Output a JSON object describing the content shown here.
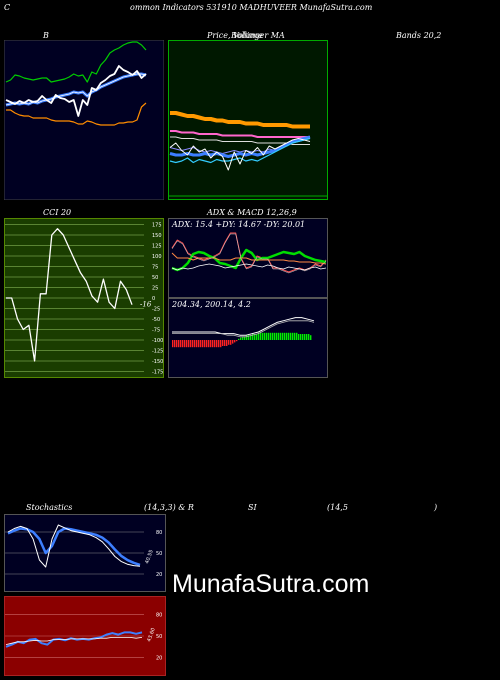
{
  "header": {
    "left": "C",
    "center": "ommon  Indicators 531910  MADHUVEER MunafaSutra.com"
  },
  "titles": {
    "bollinger": "B",
    "price": "Price,",
    "price_overlap": "Volume",
    "price_ma": "Bollinger  MA",
    "bands": "Bands 20,2",
    "cci": "CCI 20",
    "adx": "ADX  & MACD 12,26,9",
    "adx_line": "ADX: 15.4   +DY: 14.67 -DY: 20.01",
    "macd_line": "204.34,  200.14,  4.2",
    "stoch_a": "Stochastics",
    "stoch_b": "(14,3,3) & R",
    "stoch_c": "SI",
    "stoch_d": "(14,5",
    "stoch_e": ")"
  },
  "watermark": "MunafaSutra.com",
  "colors": {
    "navy": "#000022",
    "dark_green": "#001800",
    "cci_green": "#1a3d00",
    "dark_red": "#8b0000",
    "orange": "#ff8c00",
    "blue": "#3d7fff",
    "green": "#00dd00",
    "white": "#ffffff"
  },
  "chart_data": [
    {
      "type": "line",
      "name": "bollinger",
      "series": [
        {
          "values": [
            118,
            120,
            125,
            124,
            122,
            121,
            120,
            121,
            122,
            122,
            118,
            119,
            120,
            121,
            123,
            126,
            124,
            125,
            118,
            128,
            126,
            135,
            140,
            147,
            150,
            152,
            155,
            157,
            158,
            158,
            155,
            150
          ]
        },
        {
          "values": [
            95,
            96,
            97,
            96,
            97,
            96,
            98,
            97,
            99,
            100,
            101,
            103,
            104,
            105,
            106,
            108,
            107,
            108,
            104,
            108,
            110,
            113,
            115,
            117,
            119,
            121,
            123,
            124,
            125,
            126,
            126,
            125
          ]
        },
        {
          "values": [
            72,
            72,
            70,
            68,
            72,
            75,
            76,
            73,
            77,
            78,
            84,
            87,
            88,
            88,
            89,
            90,
            90,
            91,
            90,
            88,
            94,
            91,
            90,
            88,
            88,
            90,
            91,
            91,
            92,
            94,
            97,
            100
          ]
        },
        {
          "values": [
            100,
            98,
            96,
            99,
            97,
            100,
            98,
            99,
            104,
            100,
            97,
            105,
            102,
            101,
            98,
            100,
            84,
            100,
            95,
            112,
            110,
            117,
            120,
            124,
            126,
            134,
            130,
            128,
            125,
            129,
            122,
            126
          ]
        },
        {
          "values": [
            90,
            90,
            87,
            85,
            84,
            84,
            82,
            82,
            82,
            82,
            80,
            79,
            79,
            79,
            79,
            78,
            76,
            76,
            79,
            78,
            76,
            75,
            75,
            75,
            75,
            77,
            77,
            78,
            78,
            80,
            93,
            97
          ]
        }
      ]
    },
    {
      "type": "line",
      "name": "price-volume",
      "series": [
        {
          "values": [
            208,
            208,
            207,
            206,
            206,
            205,
            204,
            204,
            203,
            203,
            202,
            202,
            202,
            201,
            201,
            201,
            200,
            200,
            200,
            200,
            200,
            199,
            199,
            199,
            199
          ]
        },
        {
          "values": [
            196,
            196,
            195,
            195,
            195,
            194,
            194,
            194,
            194,
            193,
            193,
            193,
            193,
            193,
            193,
            192,
            192,
            192,
            192,
            192,
            192,
            192,
            192,
            192,
            192
          ]
        },
        {
          "values": [
            192,
            192,
            191,
            191,
            191,
            190,
            190,
            190,
            190,
            189,
            189,
            189,
            189,
            189,
            189,
            188,
            188,
            188,
            188,
            188,
            188,
            187,
            187,
            187,
            187
          ]
        },
        {
          "values": [
            185,
            184,
            183,
            184,
            185,
            183,
            182,
            183,
            182,
            181,
            182,
            183,
            182,
            183,
            182,
            183,
            182,
            184,
            183,
            185,
            186,
            188,
            189,
            190,
            192
          ]
        },
        {
          "values": [
            181,
            180,
            180,
            181,
            180,
            180,
            181,
            180,
            181,
            180,
            179,
            180,
            181,
            180,
            181,
            180,
            181,
            182,
            183,
            185,
            187,
            189,
            190,
            191,
            192
          ]
        },
        {
          "values": [
            176,
            175,
            176,
            178,
            175,
            177,
            176,
            175,
            177,
            176,
            176,
            177,
            178,
            176,
            177,
            176,
            178,
            180,
            182,
            184,
            186,
            188,
            189,
            190,
            191
          ]
        },
        {
          "values": [
            185,
            188,
            183,
            180,
            186,
            182,
            184,
            178,
            182,
            179,
            170,
            182,
            174,
            183,
            181,
            185,
            180,
            186,
            184,
            186,
            188,
            190,
            191,
            190,
            189
          ]
        }
      ]
    },
    {
      "type": "line",
      "name": "cci",
      "y_ticks": [
        175,
        150,
        125,
        100,
        75,
        50,
        25,
        0,
        -25,
        -50,
        -75,
        -100,
        -125,
        -150,
        -175
      ],
      "last_value_label": "-16",
      "series": [
        {
          "values": [
            0,
            0,
            -50,
            -75,
            -65,
            -150,
            10,
            10,
            150,
            165,
            150,
            120,
            90,
            60,
            40,
            5,
            -10,
            45,
            -10,
            -25,
            40,
            20,
            -16
          ]
        }
      ]
    },
    {
      "type": "line",
      "name": "adx",
      "series": [
        {
          "values": [
            45,
            40,
            40,
            40,
            38,
            40,
            40,
            40,
            40,
            38,
            38,
            38,
            40,
            40,
            40,
            38,
            38,
            38,
            38,
            38,
            38,
            38,
            37,
            37,
            36,
            36,
            36,
            35,
            35,
            34
          ]
        },
        {
          "values": [
            50,
            58,
            55,
            45,
            42,
            40,
            38,
            40,
            42,
            45,
            56,
            65,
            65,
            40,
            30,
            32,
            42,
            40,
            40,
            30,
            30,
            28,
            26,
            28,
            30,
            28,
            30,
            34,
            32,
            38
          ]
        },
        {
          "values": [
            30,
            28,
            30,
            35,
            44,
            46,
            45,
            42,
            40,
            35,
            34,
            32,
            30,
            40,
            48,
            45,
            38,
            40,
            40,
            42,
            44,
            46,
            45,
            44,
            46,
            42,
            40,
            38,
            37,
            36
          ]
        },
        {
          "values": [
            30,
            28,
            30,
            29,
            30,
            32,
            33,
            34,
            33,
            32,
            30,
            31,
            32,
            33,
            34,
            33,
            32,
            31,
            33,
            32,
            30,
            29,
            31,
            30,
            29,
            28,
            30,
            31,
            29,
            30
          ]
        }
      ]
    },
    {
      "type": "bar",
      "name": "macd",
      "histogram": [
        -6,
        -6,
        -6,
        -6,
        -6,
        -6,
        -6,
        -6,
        -6,
        -6,
        -6,
        -6,
        -6,
        -6,
        -6,
        -6,
        -6,
        -6,
        -6,
        -6,
        -6,
        -6,
        -6,
        -6,
        -6,
        -5,
        -5,
        -5,
        -4,
        -4,
        -3,
        -2,
        -1,
        1,
        2,
        3,
        3,
        4,
        4,
        4,
        5,
        5,
        5,
        6,
        6,
        6,
        6,
        6,
        6,
        6,
        6,
        6,
        6,
        6,
        6,
        6,
        6,
        6,
        6,
        6,
        6,
        6,
        6,
        5,
        5,
        5,
        5,
        5,
        5,
        4
      ],
      "series": [
        {
          "values": [
            5,
            5,
            5,
            5,
            5,
            5,
            5,
            5,
            4,
            4,
            4,
            3,
            3,
            4,
            5,
            7,
            9,
            11,
            12,
            13,
            14,
            14,
            13,
            12
          ]
        },
        {
          "values": [
            4,
            4,
            4,
            4,
            4,
            4,
            4,
            4,
            4,
            3,
            3,
            2,
            2,
            3,
            4,
            6,
            8,
            10,
            11,
            12,
            12,
            12,
            12,
            11
          ]
        }
      ]
    },
    {
      "type": "line",
      "name": "stochastics",
      "y_ticks": [
        80,
        50,
        20
      ],
      "side_label": "40.55",
      "series": [
        {
          "values": [
            80,
            85,
            88,
            85,
            70,
            40,
            30,
            70,
            90,
            86,
            82,
            80,
            78,
            76,
            72,
            66,
            56,
            45,
            38,
            34,
            32,
            31
          ]
        },
        {
          "values": [
            78,
            82,
            85,
            84,
            80,
            70,
            50,
            60,
            80,
            85,
            84,
            82,
            80,
            78,
            76,
            72,
            65,
            55,
            46,
            40,
            36,
            33
          ]
        }
      ]
    },
    {
      "type": "line",
      "name": "rsi",
      "y_ticks": [
        80,
        50,
        20
      ],
      "side_label": "43.60",
      "series": [
        {
          "values": [
            35,
            38,
            42,
            40,
            45,
            46,
            40,
            38,
            45,
            46,
            44,
            47,
            45,
            46,
            45,
            47,
            48,
            52,
            54,
            52,
            55,
            55,
            53,
            55
          ]
        },
        {
          "values": [
            38,
            40,
            42,
            42,
            43,
            44,
            43,
            43,
            45,
            45,
            45,
            46,
            46,
            46,
            46,
            46,
            47,
            47,
            48,
            48,
            48,
            48,
            47,
            48
          ]
        }
      ]
    }
  ]
}
